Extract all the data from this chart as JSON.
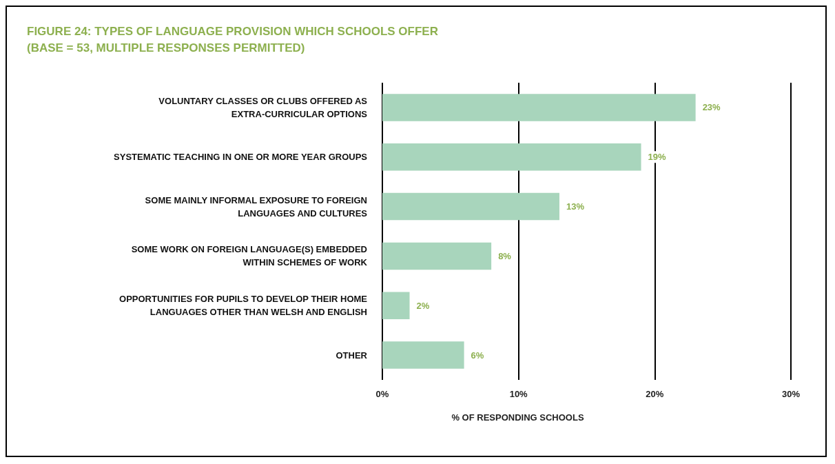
{
  "chart_data": {
    "type": "bar",
    "orientation": "horizontal",
    "title": "FIGURE 24: TYPES OF LANGUAGE PROVISION WHICH SCHOOLS OFFER\n(BASE = 53, MULTIPLE RESPONSES PERMITTED)",
    "xlabel": "% OF RESPONDING SCHOOLS",
    "categories": [
      "VOLUNTARY CLASSES OR CLUBS OFFERED AS\nEXTRA-CURRICULAR OPTIONS",
      "SYSTEMATIC TEACHING IN ONE OR MORE YEAR GROUPS",
      "SOME MAINLY INFORMAL EXPOSURE TO FOREIGN\nLANGUAGES AND CULTURES",
      "SOME WORK ON FOREIGN LANGUAGE(S) EMBEDDED\nWITHIN SCHEMES OF WORK",
      "OPPORTUNITIES FOR PUPILS TO DEVELOP THEIR HOME\nLANGUAGES OTHER THAN WELSH AND ENGLISH",
      "OTHER"
    ],
    "values": [
      23,
      19,
      13,
      8,
      2,
      6
    ],
    "value_labels": [
      "23%",
      "19%",
      "13%",
      "8%",
      "2%",
      "6%"
    ],
    "color": "#a8d5bc",
    "xlim": [
      0,
      30
    ],
    "xticks": [
      {
        "value": 0,
        "label": "0%"
      },
      {
        "value": 10,
        "label": "10%"
      },
      {
        "value": 20,
        "label": "20%"
      },
      {
        "value": 30,
        "label": "30%"
      }
    ],
    "grid": "x"
  }
}
